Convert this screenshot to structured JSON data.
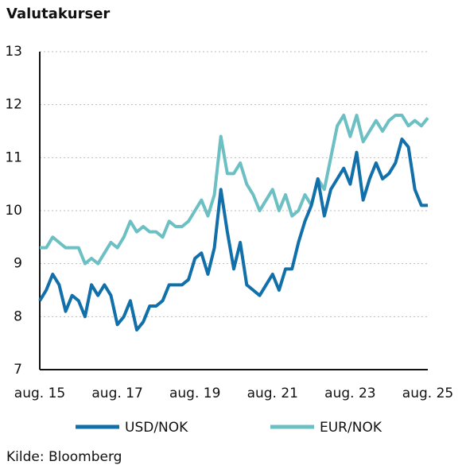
{
  "chart_data": {
    "type": "line",
    "title": "Valutakurser",
    "source": "Kilde: Bloomberg",
    "categories": [
      "aug. 15",
      null,
      null,
      null,
      null,
      null,
      null,
      null,
      null,
      null,
      null,
      null,
      "aug. 17",
      null,
      null,
      null,
      null,
      null,
      null,
      null,
      null,
      null,
      null,
      null,
      "aug. 19",
      null,
      null,
      null,
      null,
      null,
      null,
      null,
      null,
      null,
      null,
      null,
      "aug. 21",
      null,
      null,
      null,
      null,
      null,
      null,
      null,
      null,
      null,
      null,
      null,
      "aug. 23",
      null,
      null,
      null,
      null,
      null,
      null,
      null,
      null,
      null,
      null,
      null,
      "aug. 25"
    ],
    "series": [
      {
        "name": "USD/NOK",
        "color": "#1170aa",
        "values": [
          8.3,
          8.5,
          8.8,
          8.6,
          8.1,
          8.4,
          8.3,
          8.0,
          8.6,
          8.4,
          8.6,
          8.4,
          7.85,
          8.0,
          8.3,
          7.75,
          7.9,
          8.2,
          8.2,
          8.3,
          8.6,
          8.6,
          8.6,
          8.7,
          9.1,
          9.2,
          8.8,
          9.3,
          10.4,
          9.6,
          8.9,
          9.4,
          8.6,
          8.5,
          8.4,
          8.6,
          8.8,
          8.5,
          8.9,
          8.9,
          9.4,
          9.8,
          10.1,
          10.6,
          9.9,
          10.4,
          10.6,
          10.8,
          10.5,
          11.1,
          10.2,
          10.6,
          10.9,
          10.6,
          10.7,
          10.9,
          11.35,
          11.2,
          10.4,
          10.1,
          10.1
        ]
      },
      {
        "name": "EUR/NOK",
        "color": "#6cc0c4",
        "values": [
          9.3,
          9.3,
          9.5,
          9.4,
          9.3,
          9.3,
          9.3,
          9.0,
          9.1,
          9.0,
          9.2,
          9.4,
          9.3,
          9.5,
          9.8,
          9.6,
          9.7,
          9.6,
          9.6,
          9.5,
          9.8,
          9.7,
          9.7,
          9.8,
          10.0,
          10.2,
          9.9,
          10.3,
          11.4,
          10.7,
          10.7,
          10.9,
          10.5,
          10.3,
          10.0,
          10.2,
          10.4,
          10.0,
          10.3,
          9.9,
          10.0,
          10.3,
          10.1,
          10.6,
          10.4,
          11.0,
          11.6,
          11.8,
          11.4,
          11.8,
          11.3,
          11.5,
          11.7,
          11.5,
          11.7,
          11.8,
          11.8,
          11.6,
          11.7,
          11.6,
          11.75
        ]
      }
    ],
    "ylim": [
      7,
      13
    ],
    "yticks": [
      7,
      8,
      9,
      10,
      11,
      12,
      13
    ],
    "grid": true
  }
}
